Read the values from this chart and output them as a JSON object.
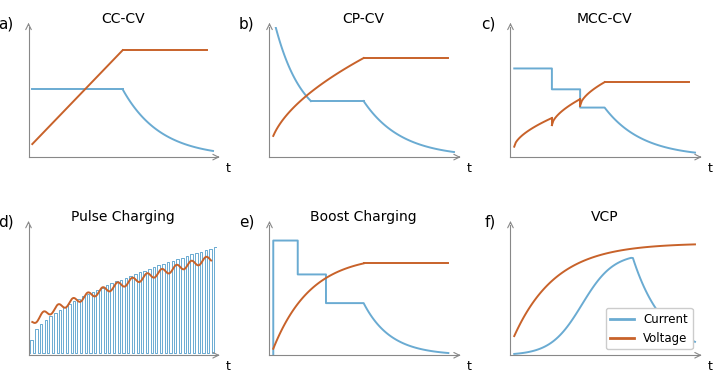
{
  "title_a": "CC-CV",
  "title_b": "CP-CV",
  "title_c": "MCC-CV",
  "title_d": "Pulse Charging",
  "title_e": "Boost Charging",
  "title_f": "VCP",
  "color_current": "#6aabd2",
  "color_voltage": "#c8622a",
  "legend_current": "Current",
  "legend_voltage": "Voltage",
  "label_fontsize": 10,
  "sub_label_fontsize": 11
}
